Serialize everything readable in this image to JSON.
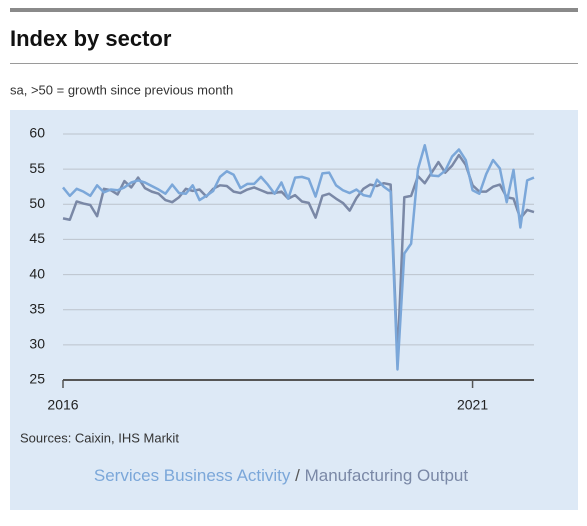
{
  "chart_data": {
    "type": "line",
    "title": "Index by sector",
    "subtitle": "sa, >50 = growth since previous month",
    "source": "Sources: Caixin, IHS Markit",
    "legend_separator": "/",
    "categories": [
      "2016",
      null,
      null,
      null,
      null,
      null,
      null,
      null,
      null,
      null,
      null,
      null,
      null,
      null,
      null,
      null,
      null,
      null,
      null,
      null,
      null,
      null,
      null,
      null,
      null,
      null,
      null,
      null,
      null,
      null,
      null,
      null,
      null,
      null,
      null,
      null,
      null,
      null,
      null,
      null,
      null,
      null,
      null,
      null,
      null,
      null,
      null,
      null,
      null,
      null,
      null,
      null,
      null,
      null,
      null,
      null,
      null,
      null,
      null,
      null,
      "2021",
      null,
      null,
      null,
      null,
      null,
      null,
      null,
      null,
      null
    ],
    "ylim": [
      25,
      60
    ],
    "yticks": [
      25,
      30,
      35,
      40,
      45,
      50,
      55,
      60
    ],
    "grid": true,
    "series": [
      {
        "name": "Services Business Activity",
        "color": "#7ba7d9",
        "values": [
          52.4,
          51.2,
          52.2,
          51.8,
          51.2,
          52.7,
          51.7,
          52.1,
          52.0,
          52.4,
          53.1,
          53.4,
          53.1,
          52.6,
          52.1,
          51.5,
          52.8,
          51.6,
          51.5,
          52.7,
          50.6,
          51.2,
          51.9,
          53.9,
          54.7,
          54.2,
          52.3,
          52.9,
          52.9,
          53.9,
          52.8,
          51.5,
          53.1,
          50.8,
          53.8,
          53.9,
          53.6,
          51.1,
          54.4,
          54.5,
          52.7,
          52.0,
          51.6,
          52.1,
          51.3,
          51.1,
          53.5,
          52.5,
          51.8,
          26.5,
          43.0,
          44.4,
          55.0,
          58.4,
          54.1,
          54.0,
          54.8,
          56.8,
          57.8,
          56.3,
          52.0,
          51.5,
          54.3,
          56.3,
          55.1,
          50.3,
          54.9,
          46.7,
          53.4,
          53.8
        ]
      },
      {
        "name": "Manufacturing Output",
        "color": "#7a88a6",
        "values": [
          48.0,
          47.8,
          50.4,
          50.1,
          49.9,
          48.3,
          52.2,
          52.0,
          51.4,
          53.3,
          52.4,
          53.8,
          52.3,
          51.8,
          51.5,
          50.6,
          50.3,
          51.0,
          52.2,
          51.9,
          52.1,
          51.1,
          52.2,
          52.7,
          52.6,
          51.8,
          51.6,
          52.1,
          52.4,
          52.0,
          51.6,
          51.6,
          51.8,
          50.8,
          51.3,
          50.4,
          50.2,
          48.1,
          51.2,
          51.5,
          50.8,
          50.2,
          49.1,
          50.9,
          52.2,
          52.8,
          52.6,
          53.0,
          52.8,
          28.0,
          51.0,
          51.2,
          54.0,
          53.0,
          54.5,
          56.0,
          54.5,
          55.5,
          57.0,
          55.6,
          52.7,
          51.8,
          51.8,
          52.5,
          52.8,
          51.0,
          50.8,
          48.0,
          49.2,
          48.9
        ]
      }
    ]
  }
}
